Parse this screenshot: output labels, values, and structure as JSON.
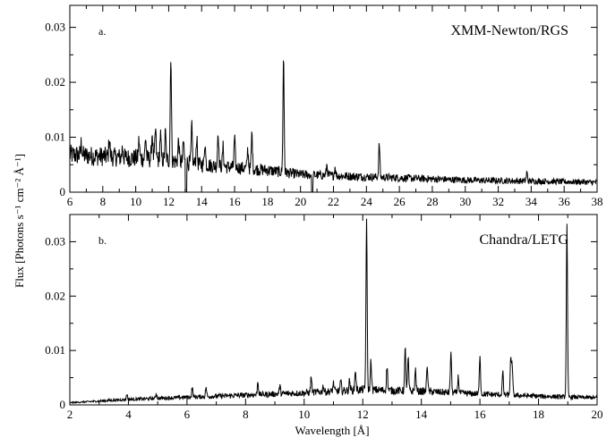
{
  "figure": {
    "ylabel": "Flux [Photons s⁻¹ cm⁻² Å⁻¹]",
    "xlabel": "Wavelength [Å]"
  },
  "chart_data": [
    {
      "type": "line",
      "panel_label": "a.",
      "instrument": "XMM-Newton/RGS",
      "xlim": [
        6,
        38
      ],
      "ylim": [
        0,
        0.034
      ],
      "xticks": [
        6,
        8,
        10,
        12,
        14,
        16,
        18,
        20,
        22,
        24,
        26,
        28,
        30,
        32,
        34,
        36,
        38
      ],
      "yticks": [
        0,
        0.01,
        0.02,
        0.03
      ],
      "ytick_labels": [
        "0",
        "0.01",
        "0.02",
        "0.03"
      ],
      "continuum": [
        [
          6,
          0.0068
        ],
        [
          8,
          0.0065
        ],
        [
          10,
          0.0062
        ],
        [
          12,
          0.0058
        ],
        [
          14,
          0.005
        ],
        [
          16,
          0.0045
        ],
        [
          18,
          0.004
        ],
        [
          20,
          0.0032
        ],
        [
          22,
          0.003
        ],
        [
          24,
          0.0028
        ],
        [
          26,
          0.0026
        ],
        [
          28,
          0.0024
        ],
        [
          30,
          0.0022
        ],
        [
          32,
          0.0021
        ],
        [
          34,
          0.002
        ],
        [
          36,
          0.0019
        ],
        [
          38,
          0.0018
        ]
      ],
      "lines": [
        {
          "x": 6.7,
          "y": 0.009
        },
        {
          "x": 8.4,
          "y": 0.01
        },
        {
          "x": 9.2,
          "y": 0.0082
        },
        {
          "x": 10.2,
          "y": 0.0095
        },
        {
          "x": 10.6,
          "y": 0.01
        },
        {
          "x": 11.0,
          "y": 0.0108
        },
        {
          "x": 11.2,
          "y": 0.0113
        },
        {
          "x": 11.5,
          "y": 0.0105
        },
        {
          "x": 11.8,
          "y": 0.0108
        },
        {
          "x": 12.13,
          "y": 0.0252
        },
        {
          "x": 12.6,
          "y": 0.0095
        },
        {
          "x": 12.9,
          "y": 0.0092
        },
        {
          "x": 13.4,
          "y": 0.0118
        },
        {
          "x": 13.7,
          "y": 0.01
        },
        {
          "x": 14.2,
          "y": 0.0092
        },
        {
          "x": 15.0,
          "y": 0.0112
        },
        {
          "x": 15.3,
          "y": 0.0082
        },
        {
          "x": 16.0,
          "y": 0.0097
        },
        {
          "x": 16.8,
          "y": 0.0078
        },
        {
          "x": 17.05,
          "y": 0.0107
        },
        {
          "x": 18.97,
          "y": 0.0245
        },
        {
          "x": 21.6,
          "y": 0.005
        },
        {
          "x": 22.1,
          "y": 0.0046
        },
        {
          "x": 24.78,
          "y": 0.0088
        },
        {
          "x": 33.74,
          "y": 0.0036
        }
      ],
      "gaps": [
        {
          "x": 13.05,
          "y": -0.0015
        },
        {
          "x": 20.7,
          "y": 0.0
        }
      ]
    },
    {
      "type": "line",
      "panel_label": "b.",
      "instrument": "Chandra/LETG",
      "xlim": [
        2,
        20
      ],
      "ylim": [
        0,
        0.035
      ],
      "xticks": [
        2,
        4,
        6,
        8,
        10,
        12,
        14,
        16,
        18,
        20
      ],
      "yticks": [
        0,
        0.01,
        0.02,
        0.03
      ],
      "ytick_labels": [
        "0",
        "0.01",
        "0.02",
        "0.03"
      ],
      "continuum": [
        [
          2,
          0.0004
        ],
        [
          4,
          0.001
        ],
        [
          6,
          0.0014
        ],
        [
          8,
          0.0018
        ],
        [
          10,
          0.0022
        ],
        [
          11,
          0.0025
        ],
        [
          12,
          0.0028
        ],
        [
          14,
          0.0025
        ],
        [
          16,
          0.002
        ],
        [
          18,
          0.0016
        ],
        [
          20,
          0.0013
        ]
      ],
      "lines": [
        {
          "x": 3.95,
          "y": 0.002
        },
        {
          "x": 4.95,
          "y": 0.0021
        },
        {
          "x": 6.18,
          "y": 0.0032
        },
        {
          "x": 6.65,
          "y": 0.0032
        },
        {
          "x": 8.42,
          "y": 0.0043
        },
        {
          "x": 9.17,
          "y": 0.0035
        },
        {
          "x": 10.24,
          "y": 0.0052
        },
        {
          "x": 10.65,
          "y": 0.0035
        },
        {
          "x": 11.0,
          "y": 0.004
        },
        {
          "x": 11.25,
          "y": 0.0043
        },
        {
          "x": 11.55,
          "y": 0.0045
        },
        {
          "x": 11.75,
          "y": 0.0065
        },
        {
          "x": 12.13,
          "y": 0.034
        },
        {
          "x": 12.28,
          "y": 0.0082
        },
        {
          "x": 12.83,
          "y": 0.0072
        },
        {
          "x": 13.45,
          "y": 0.0103
        },
        {
          "x": 13.55,
          "y": 0.0085
        },
        {
          "x": 13.8,
          "y": 0.0065
        },
        {
          "x": 14.2,
          "y": 0.0075
        },
        {
          "x": 15.01,
          "y": 0.0098
        },
        {
          "x": 15.26,
          "y": 0.0052
        },
        {
          "x": 16.0,
          "y": 0.0092
        },
        {
          "x": 16.78,
          "y": 0.006
        },
        {
          "x": 17.05,
          "y": 0.0082
        },
        {
          "x": 17.1,
          "y": 0.0076
        },
        {
          "x": 18.97,
          "y": 0.033
        }
      ]
    }
  ]
}
